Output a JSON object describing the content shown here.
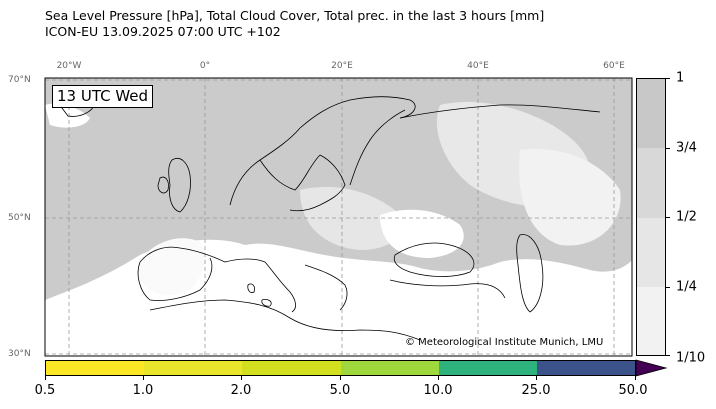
{
  "title": {
    "line1": "Sea Level Pressure [hPa], Total Cloud Cover, Total prec. in the last 3 hours [mm]",
    "line2": "ICON-EU 13.09.2025 07:00 UTC +102"
  },
  "time_label": "13 UTC Wed",
  "credit": "© Meteorological Institute Munich, LMU",
  "longitude_labels": [
    "20°W",
    "0°",
    "20°E",
    "40°E",
    "60°E"
  ],
  "latitude_labels": [
    "70°N",
    "50°N",
    "30°N"
  ],
  "cloud_cover_legend": {
    "labels": [
      "1",
      "3/4",
      "1/2",
      "1/4",
      "1/10"
    ],
    "colors": [
      "#c8c8c8",
      "#d8d8d8",
      "#e6e6e6",
      "#f2f2f2"
    ]
  },
  "precip_legend": {
    "labels": [
      "0.5",
      "1.0",
      "2.0",
      "5.0",
      "10.0",
      "25.0",
      "50.0"
    ],
    "colors": [
      "#fde725",
      "#e8e52a",
      "#d2df1f",
      "#9fd83c",
      "#2db27d",
      "#3b528b"
    ],
    "extend_color": "#440154"
  },
  "colors": {
    "sea_cloud": "#cbcbcb",
    "land_clear": "#ffffff",
    "gridline": "#999999"
  }
}
